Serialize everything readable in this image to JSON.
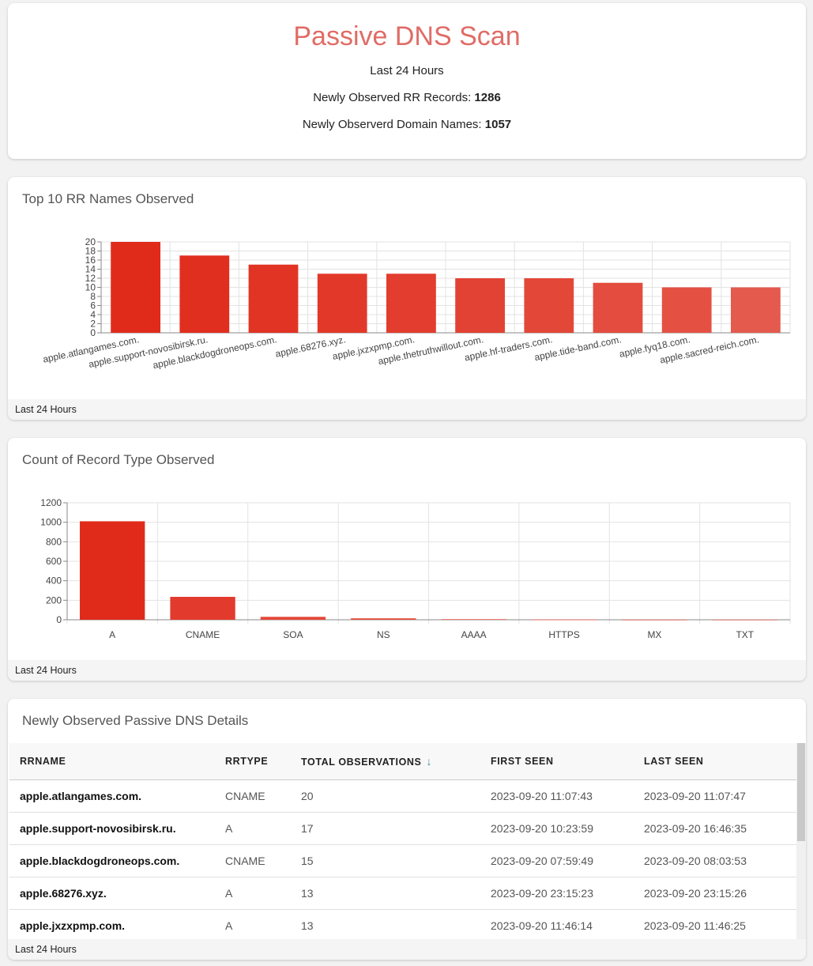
{
  "summary": {
    "title": "Passive DNS Scan",
    "period": "Last 24 Hours",
    "rr_label": "Newly Observed RR Records:",
    "rr_value": "1286",
    "domain_label": "Newly Observerd Domain Names:",
    "domain_value": "1057"
  },
  "top10": {
    "heading": "Top 10 RR Names Observed",
    "footer": "Last 24 Hours"
  },
  "rrtype": {
    "heading": "Count of Record Type Observed",
    "footer": "Last 24 Hours"
  },
  "details": {
    "heading": "Newly Observed Passive DNS Details",
    "footer": "Last 24 Hours",
    "columns": [
      "RRNAME",
      "RRTYPE",
      "TOTAL OBSERVATIONS",
      "FIRST SEEN",
      "LAST SEEN"
    ],
    "sort_icon": "arrow-down-icon",
    "rows": [
      [
        "apple.atlangames.com.",
        "CNAME",
        "20",
        "2023-09-20 11:07:43",
        "2023-09-20 11:07:47"
      ],
      [
        "apple.support-novosibirsk.ru.",
        "A",
        "17",
        "2023-09-20 10:23:59",
        "2023-09-20 16:46:35"
      ],
      [
        "apple.blackdogdroneops.com.",
        "CNAME",
        "15",
        "2023-09-20 07:59:49",
        "2023-09-20 08:03:53"
      ],
      [
        "apple.68276.xyz.",
        "A",
        "13",
        "2023-09-20 23:15:23",
        "2023-09-20 23:15:26"
      ],
      [
        "apple.jxzxpmp.com.",
        "A",
        "13",
        "2023-09-20 11:46:14",
        "2023-09-20 11:46:25"
      ]
    ]
  },
  "chart_data": [
    {
      "type": "bar",
      "categories": [
        "apple.atlangames.com.",
        "apple.support-novosibirsk.ru.",
        "apple.blackdogdroneops.com.",
        "apple.68276.xyz.",
        "apple.jxzxpmp.com.",
        "apple.thetruthwillout.com.",
        "apple.hf-traders.com.",
        "apple.tide-band.com.",
        "apple.fyq18.com.",
        "apple.sacred-reich.com."
      ],
      "values": [
        20,
        17,
        15,
        13,
        13,
        12,
        12,
        11,
        10,
        10
      ],
      "yticks": [
        0,
        2,
        4,
        6,
        8,
        10,
        12,
        14,
        16,
        18,
        20
      ],
      "ylim": [
        0,
        20
      ],
      "grid": true,
      "colors": [
        "#e02b1b",
        "#e12f1f",
        "#e13424",
        "#e23829",
        "#e23d2e",
        "#e24233",
        "#e34738",
        "#e34c3e",
        "#e45143",
        "#e45a4d"
      ]
    },
    {
      "type": "bar",
      "categories": [
        "A",
        "CNAME",
        "SOA",
        "NS",
        "AAAA",
        "HTTPS",
        "MX",
        "TXT"
      ],
      "values": [
        1010,
        235,
        30,
        15,
        6,
        3,
        1,
        1
      ],
      "yticks": [
        0,
        200,
        400,
        600,
        800,
        1000,
        1200
      ],
      "ylim": [
        0,
        1200
      ],
      "grid": true,
      "colors": [
        "#e02b1b",
        "#e23b2d",
        "#e44838",
        "#e54f40",
        "#e65447",
        "#e65a4d",
        "#e65f53",
        "#e76558"
      ]
    }
  ]
}
